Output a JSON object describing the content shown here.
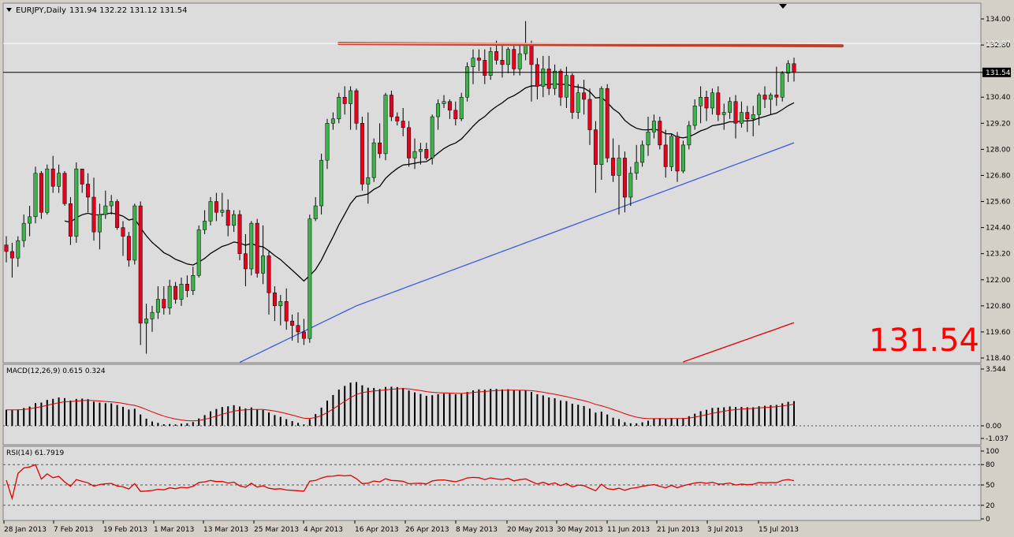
{
  "header": {
    "dropdown_icon": "triangle-down-icon",
    "symbol": "EURJPY,Daily",
    "ohlc": "131.94 132.22 131.12 131.54"
  },
  "big_price": "131.54",
  "colors": {
    "background": "#d4d0c8",
    "plot_bg": "#dcdcdc",
    "bull": "#3cb24a",
    "bear": "#e8001c",
    "ma_black": "#000000",
    "ma_blue": "#3a5bd9",
    "ma_red": "#e00000",
    "resistance": "#c0412b",
    "big_price": "#ff0000"
  },
  "chart_data": [
    {
      "type": "candlestick",
      "title": "EURJPY,Daily",
      "yticks": [
        "134.00",
        "132.80",
        "131.54",
        "130.40",
        "129.20",
        "128.00",
        "126.80",
        "125.60",
        "124.40",
        "123.20",
        "122.00",
        "120.80",
        "119.60",
        "118.40"
      ],
      "ylim": [
        118.4,
        134.0
      ],
      "current_price": 131.54,
      "resistance_label": "132.87",
      "xticks": [
        "28 Jan 2013",
        "7 Feb 2013",
        "19 Feb 2013",
        "1 Mar 2013",
        "13 Mar 2013",
        "25 Mar 2013",
        "4 Apr 2013",
        "16 Apr 2013",
        "26 Apr 2013",
        "8 May 2013",
        "20 May 2013",
        "30 May 2013",
        "11 Jun 2013",
        "21 Jun 2013",
        "3 Jul 2013",
        "15 Jul 2013"
      ],
      "resistance": 132.87,
      "ohlc": [
        [
          123.6,
          124.0,
          122.8,
          123.3
        ],
        [
          123.3,
          123.7,
          122.1,
          123.0
        ],
        [
          123.0,
          124.0,
          122.6,
          123.8
        ],
        [
          123.8,
          125.0,
          123.5,
          124.6
        ],
        [
          124.6,
          125.4,
          124.0,
          124.9
        ],
        [
          124.9,
          127.2,
          124.6,
          126.9
        ],
        [
          126.9,
          127.0,
          124.8,
          125.1
        ],
        [
          125.1,
          127.3,
          125.0,
          127.1
        ],
        [
          127.1,
          127.7,
          126.0,
          126.3
        ],
        [
          126.3,
          127.3,
          126.0,
          126.9
        ],
        [
          126.9,
          127.0,
          125.4,
          125.5
        ],
        [
          125.5,
          125.8,
          123.6,
          124.0
        ],
        [
          124.0,
          127.4,
          123.7,
          127.1
        ],
        [
          127.1,
          127.1,
          126.0,
          126.4
        ],
        [
          126.4,
          126.9,
          125.1,
          125.8
        ],
        [
          125.8,
          126.7,
          123.8,
          124.2
        ],
        [
          124.2,
          125.5,
          123.4,
          125.0
        ],
        [
          125.0,
          126.1,
          124.8,
          125.4
        ],
        [
          125.4,
          125.9,
          125.0,
          125.6
        ],
        [
          125.6,
          125.7,
          124.3,
          124.4
        ],
        [
          124.4,
          124.7,
          123.1,
          124.0
        ],
        [
          124.0,
          124.2,
          122.6,
          122.9
        ],
        [
          122.9,
          125.5,
          122.7,
          125.4
        ],
        [
          125.4,
          125.6,
          119.0,
          120.0
        ],
        [
          120.0,
          120.9,
          118.6,
          120.2
        ],
        [
          120.2,
          120.8,
          119.6,
          120.5
        ],
        [
          120.5,
          121.7,
          120.2,
          121.1
        ],
        [
          121.1,
          121.7,
          120.4,
          120.7
        ],
        [
          120.7,
          122.0,
          120.4,
          121.7
        ],
        [
          121.7,
          121.9,
          120.9,
          121.1
        ],
        [
          121.1,
          122.1,
          120.8,
          121.8
        ],
        [
          121.8,
          122.2,
          121.2,
          121.5
        ],
        [
          121.5,
          122.6,
          121.3,
          122.2
        ],
        [
          122.2,
          124.5,
          122.1,
          124.3
        ],
        [
          124.3,
          125.2,
          124.1,
          124.7
        ],
        [
          124.7,
          125.8,
          124.5,
          125.6
        ],
        [
          125.6,
          126.0,
          124.7,
          125.1
        ],
        [
          125.1,
          126.0,
          124.9,
          125.2
        ],
        [
          125.2,
          125.7,
          124.0,
          124.5
        ],
        [
          124.5,
          125.2,
          124.2,
          125.0
        ],
        [
          125.0,
          125.2,
          122.9,
          123.2
        ],
        [
          123.2,
          124.1,
          121.7,
          122.5
        ],
        [
          122.5,
          124.7,
          122.2,
          124.6
        ],
        [
          124.6,
          124.8,
          122.1,
          122.3
        ],
        [
          122.3,
          124.5,
          121.8,
          123.1
        ],
        [
          123.1,
          123.3,
          120.4,
          121.4
        ],
        [
          121.4,
          121.7,
          120.1,
          120.8
        ],
        [
          120.8,
          121.3,
          119.9,
          121.0
        ],
        [
          121.0,
          121.6,
          119.7,
          120.1
        ],
        [
          120.1,
          120.4,
          119.2,
          119.9
        ],
        [
          119.9,
          120.5,
          119.1,
          119.6
        ],
        [
          119.6,
          120.2,
          119.0,
          119.3
        ],
        [
          119.3,
          125.0,
          119.1,
          124.8
        ],
        [
          124.8,
          125.8,
          124.7,
          125.4
        ],
        [
          125.4,
          127.8,
          125.0,
          127.5
        ],
        [
          127.5,
          129.4,
          127.1,
          129.2
        ],
        [
          129.2,
          129.7,
          128.9,
          129.4
        ],
        [
          129.4,
          130.6,
          129.2,
          130.4
        ],
        [
          130.4,
          130.9,
          129.6,
          130.1
        ],
        [
          130.1,
          130.9,
          128.9,
          130.7
        ],
        [
          130.7,
          130.8,
          128.9,
          129.2
        ],
        [
          129.2,
          129.5,
          126.1,
          126.4
        ],
        [
          126.4,
          129.7,
          125.5,
          126.7
        ],
        [
          126.7,
          128.5,
          126.5,
          128.3
        ],
        [
          128.3,
          129.2,
          127.6,
          127.8
        ],
        [
          127.8,
          130.6,
          127.5,
          130.5
        ],
        [
          130.5,
          130.7,
          129.3,
          129.5
        ],
        [
          129.5,
          129.7,
          129.1,
          129.3
        ],
        [
          129.3,
          129.9,
          128.6,
          129.0
        ],
        [
          129.0,
          129.3,
          127.2,
          127.6
        ],
        [
          127.6,
          128.5,
          127.1,
          127.9
        ],
        [
          127.9,
          128.3,
          127.3,
          128.0
        ],
        [
          128.0,
          128.3,
          127.5,
          127.6
        ],
        [
          127.6,
          129.6,
          127.3,
          129.5
        ],
        [
          129.5,
          130.3,
          128.9,
          130.1
        ],
        [
          130.1,
          130.5,
          129.9,
          130.2
        ],
        [
          130.2,
          130.3,
          129.4,
          129.8
        ],
        [
          129.8,
          130.2,
          129.1,
          129.4
        ],
        [
          129.4,
          130.6,
          129.3,
          130.4
        ],
        [
          130.4,
          132.0,
          130.2,
          131.8
        ],
        [
          131.8,
          132.6,
          131.0,
          132.2
        ],
        [
          132.2,
          132.6,
          131.6,
          132.1
        ],
        [
          132.1,
          132.6,
          131.0,
          131.4
        ],
        [
          131.4,
          132.7,
          131.2,
          132.5
        ],
        [
          132.5,
          133.0,
          131.9,
          132.1
        ],
        [
          132.1,
          132.8,
          131.3,
          131.9
        ],
        [
          131.9,
          132.7,
          131.5,
          132.6
        ],
        [
          132.6,
          132.8,
          131.4,
          131.7
        ],
        [
          131.7,
          132.9,
          131.4,
          132.4
        ],
        [
          132.4,
          133.9,
          132.1,
          132.8
        ],
        [
          132.8,
          133.0,
          130.2,
          131.9
        ],
        [
          131.9,
          132.2,
          130.3,
          130.9
        ],
        [
          130.9,
          132.3,
          130.4,
          131.7
        ],
        [
          131.7,
          132.3,
          130.5,
          130.8
        ],
        [
          130.8,
          131.9,
          130.5,
          131.6
        ],
        [
          131.6,
          131.7,
          130.0,
          130.4
        ],
        [
          130.4,
          131.8,
          129.9,
          131.4
        ],
        [
          131.4,
          131.5,
          129.4,
          129.7
        ],
        [
          129.7,
          131.0,
          129.4,
          130.6
        ],
        [
          130.6,
          131.2,
          129.6,
          130.3
        ],
        [
          130.3,
          130.8,
          128.2,
          128.9
        ],
        [
          128.9,
          129.3,
          126.0,
          127.3
        ],
        [
          127.3,
          130.9,
          126.6,
          130.8
        ],
        [
          130.8,
          131.0,
          127.4,
          127.6
        ],
        [
          127.6,
          128.5,
          126.5,
          126.8
        ],
        [
          126.8,
          128.2,
          125.0,
          127.6
        ],
        [
          127.6,
          127.9,
          125.1,
          125.8
        ],
        [
          125.8,
          127.2,
          125.4,
          126.9
        ],
        [
          126.9,
          128.2,
          126.6,
          127.4
        ],
        [
          127.4,
          128.4,
          127.2,
          128.2
        ],
        [
          128.2,
          129.5,
          127.7,
          128.8
        ],
        [
          128.8,
          129.6,
          128.5,
          129.3
        ],
        [
          129.3,
          129.5,
          128.0,
          128.2
        ],
        [
          128.2,
          128.9,
          126.7,
          127.2
        ],
        [
          127.2,
          128.7,
          127.0,
          128.6
        ],
        [
          128.6,
          128.8,
          126.5,
          127.0
        ],
        [
          127.0,
          128.4,
          126.9,
          128.2
        ],
        [
          128.2,
          129.3,
          128.0,
          129.1
        ],
        [
          129.1,
          130.3,
          128.9,
          130.0
        ],
        [
          130.0,
          130.9,
          129.2,
          130.4
        ],
        [
          130.4,
          130.7,
          129.3,
          129.9
        ],
        [
          129.9,
          130.8,
          129.6,
          130.6
        ],
        [
          130.6,
          130.9,
          129.3,
          129.6
        ],
        [
          129.6,
          130.1,
          128.9,
          129.7
        ],
        [
          129.7,
          130.4,
          129.4,
          130.2
        ],
        [
          130.2,
          130.5,
          128.5,
          129.2
        ],
        [
          129.2,
          130.2,
          129.0,
          129.7
        ],
        [
          129.7,
          130.0,
          128.8,
          129.4
        ],
        [
          129.4,
          130.0,
          128.6,
          129.6
        ],
        [
          129.6,
          130.6,
          129.1,
          130.5
        ],
        [
          130.5,
          130.9,
          129.9,
          130.3
        ],
        [
          130.3,
          130.6,
          129.6,
          130.5
        ],
        [
          130.5,
          131.8,
          130.0,
          130.4
        ],
        [
          130.4,
          131.6,
          130.2,
          131.5
        ],
        [
          131.5,
          132.1,
          131.1,
          131.94
        ],
        [
          131.94,
          132.22,
          131.12,
          131.54
        ]
      ]
    },
    {
      "type": "bar",
      "title": "MACD(12,26,9) 0.615 0.324",
      "yticks": [
        "3.544",
        "0.00",
        "-1.037"
      ],
      "ylim": [
        -1.037,
        3.544
      ]
    },
    {
      "type": "line",
      "title": "RSI(14) 61.7919",
      "yticks": [
        "100",
        "80",
        "50",
        "20",
        "0"
      ],
      "ylim": [
        0,
        100
      ],
      "levels": [
        80,
        50,
        20
      ]
    }
  ]
}
